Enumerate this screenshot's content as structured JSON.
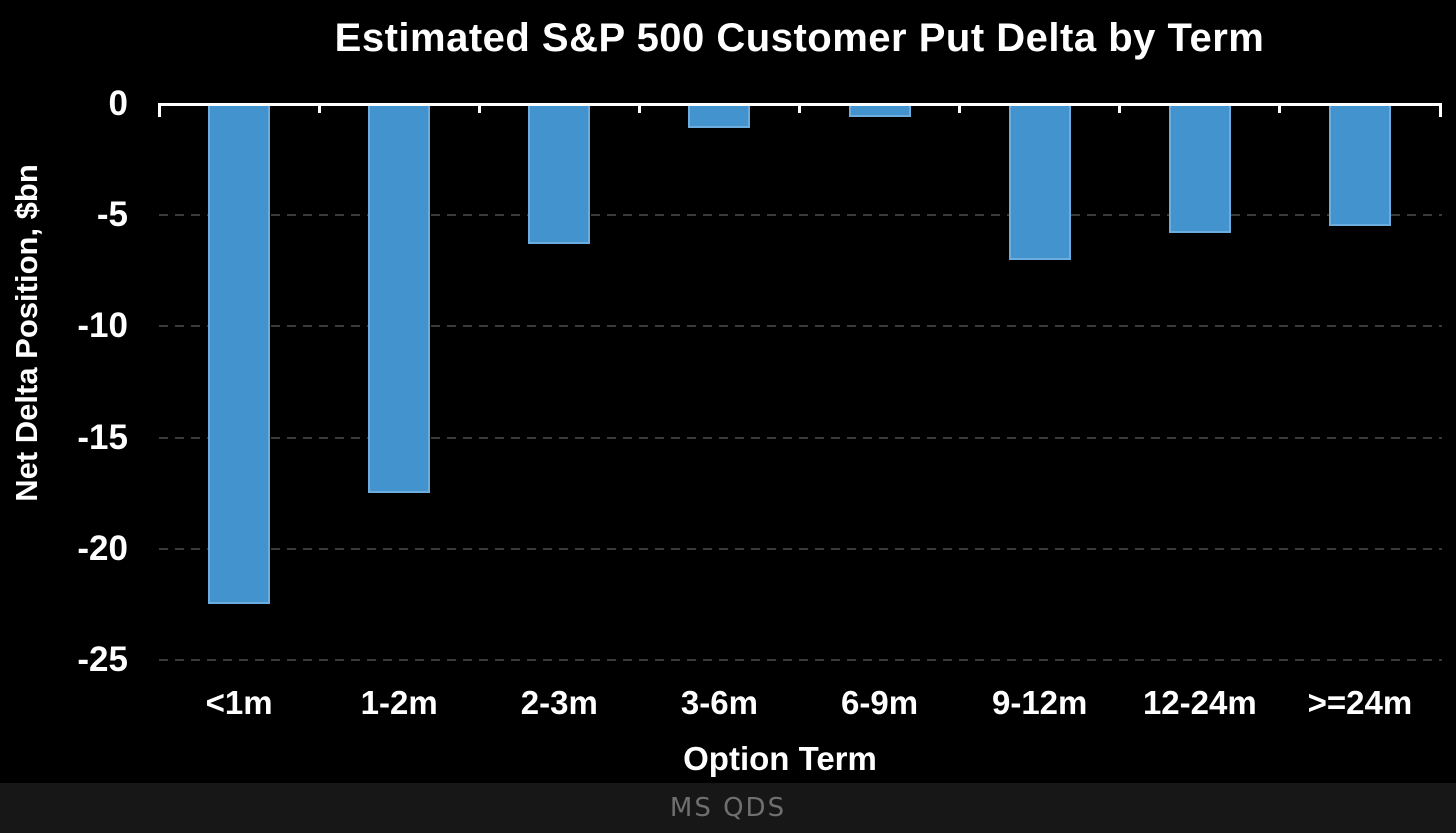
{
  "chart_data": {
    "type": "bar",
    "title": "Estimated S&P 500 Customer Put Delta by Term",
    "xlabel": "Option Term",
    "ylabel": "Net Delta Position, $bn",
    "categories": [
      "<1m",
      "1-2m",
      "2-3m",
      "3-6m",
      "6-9m",
      "9-12m",
      "12-24m",
      ">=24m"
    ],
    "values": [
      -22.5,
      -17.5,
      -6.3,
      -1.1,
      -0.6,
      -7.0,
      -5.8,
      -5.5
    ],
    "ylim": [
      -25,
      0
    ],
    "yticks": [
      0,
      -5,
      -10,
      -15,
      -20,
      -25
    ],
    "grid": "horizontal-dashed",
    "legend": "none",
    "bar_color": "#4293ce",
    "bar_edge_color": "#6cadde",
    "grid_color": "#3a3a3a",
    "axis_color": "#ffffff",
    "text_color": "#ffffff",
    "background": "#000000"
  },
  "footer": {
    "source": "MS QDS",
    "background": "#171717",
    "text_color": "#6f6f6f"
  }
}
